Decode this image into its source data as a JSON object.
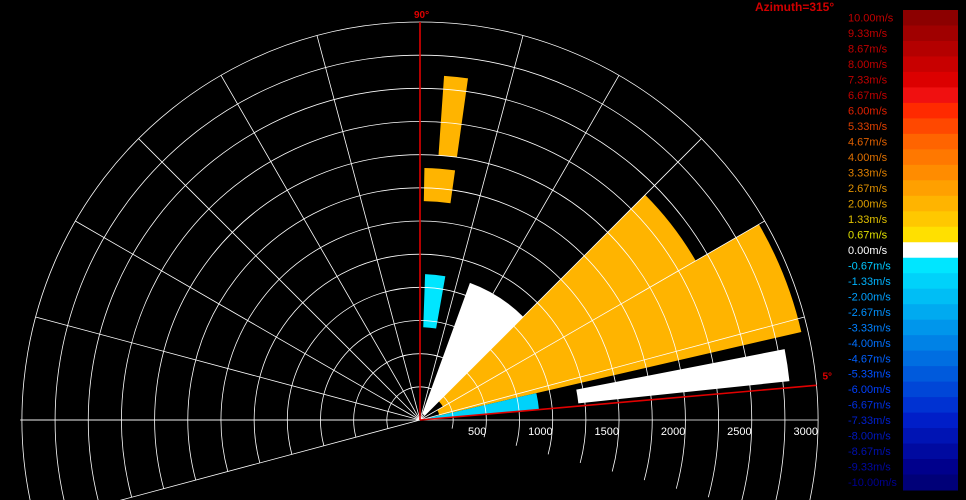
{
  "chart_data": {
    "type": "heatmap",
    "title": "Azimuth=315°",
    "plot": "polar-sector velocity field (range-elevation)",
    "angle_labels": [
      "90°",
      "5°"
    ],
    "sector_start_deg": 5,
    "sector_end_deg": 90,
    "r_axis": {
      "max": 3000,
      "ticks": [
        500,
        1000,
        1500,
        2000,
        2500,
        3000
      ]
    },
    "range_rings": [
      250,
      500,
      750,
      1000,
      1250,
      1500,
      1750,
      2000,
      2250,
      2500,
      2750,
      3000
    ],
    "radial_lines_deg": [
      15,
      30,
      45,
      60,
      75,
      90,
      105,
      120,
      135,
      150,
      165,
      180,
      195
    ],
    "colorbar": {
      "unit": "m/s",
      "labels": [
        "10.00m/s",
        "9.33m/s",
        "8.67m/s",
        "8.00m/s",
        "7.33m/s",
        "6.67m/s",
        "6.00m/s",
        "5.33m/s",
        "4.67m/s",
        "4.00m/s",
        "3.33m/s",
        "2.67m/s",
        "2.00m/s",
        "1.33m/s",
        "0.67m/s",
        "0.00m/s",
        "-0.67m/s",
        "-1.33m/s",
        "-2.00m/s",
        "-2.67m/s",
        "-3.33m/s",
        "-4.00m/s",
        "-4.67m/s",
        "-5.33m/s",
        "-6.00m/s",
        "-6.67m/s",
        "-7.33m/s",
        "-8.00m/s",
        "-8.67m/s",
        "-9.33m/s",
        "-10.00m/s"
      ],
      "colors": [
        "#8c0000",
        "#a00000",
        "#b40000",
        "#c80000",
        "#dc0000",
        "#f01010",
        "#ff2a00",
        "#ff4800",
        "#ff6400",
        "#ff7800",
        "#ff8c00",
        "#ffa000",
        "#ffb400",
        "#ffc800",
        "#ffe000",
        "#ffffff",
        "#00e6ff",
        "#00d2fa",
        "#00bef5",
        "#00aaf0",
        "#0096eb",
        "#0082e6",
        "#006ee1",
        "#005adc",
        "#0046d7",
        "#0032d2",
        "#001ec8",
        "#0014b4",
        "#000aa0",
        "#00008c",
        "#000078"
      ],
      "label_colors": [
        "#c00000",
        "#c00000",
        "#c00000",
        "#c00000",
        "#c00000",
        "#c00000",
        "#e02000",
        "#e04000",
        "#e06000",
        "#e07000",
        "#e08000",
        "#e09000",
        "#e0a000",
        "#e0c000",
        "#e0e000",
        "#ffffff",
        "#00c8ff",
        "#00b4ff",
        "#00a0ff",
        "#0090ff",
        "#0080ff",
        "#0070ff",
        "#0060ff",
        "#0050ff",
        "#0040ff",
        "#0030e0",
        "#0020d0",
        "#0018c0",
        "#0010b0",
        "#0008a0",
        "#000090"
      ]
    },
    "velocity_regions": [
      {
        "r0": 150,
        "r1": 2950,
        "a0": 13,
        "a1": 30,
        "value": 2.3
      },
      {
        "r0": 200,
        "r1": 2400,
        "a0": 30,
        "a1": 45,
        "value": 1.8
      },
      {
        "r0": 50,
        "r1": 1100,
        "a0": 45,
        "a1": 70,
        "value": 0.0
      },
      {
        "r0": 50,
        "r1": 900,
        "a0": 5,
        "a1": 13,
        "value": -1.3
      },
      {
        "r0": 1200,
        "r1": 2800,
        "a0": 6,
        "a1": 11,
        "value": 0.0
      },
      {
        "r0": 2000,
        "r1": 2600,
        "a0": 82,
        "a1": 86,
        "value": 1.8
      },
      {
        "r0": 1650,
        "r1": 1900,
        "a0": 82,
        "a1": 89,
        "value": 2.0
      },
      {
        "r0": 700,
        "r1": 1100,
        "a0": 80,
        "a1": 88,
        "value": -1.0
      }
    ]
  }
}
